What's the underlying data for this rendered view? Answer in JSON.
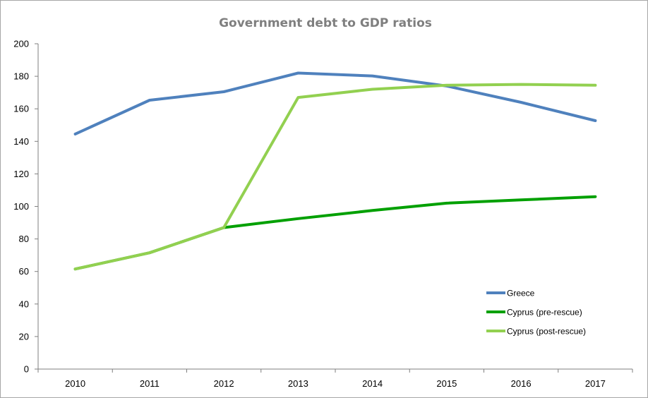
{
  "chart_data": {
    "type": "line",
    "title": "Government debt to GDP ratios",
    "xlabel": "",
    "ylabel": "",
    "categories": [
      "2010",
      "2011",
      "2012",
      "2013",
      "2014",
      "2015",
      "2016",
      "2017"
    ],
    "ylim": [
      0,
      200
    ],
    "yticks": [
      0,
      20,
      40,
      60,
      80,
      100,
      120,
      140,
      160,
      180,
      200
    ],
    "grid": false,
    "legend_position": "bottom-right",
    "series": [
      {
        "name": "Greece",
        "color": "#4f81bd",
        "values": [
          144.5,
          165.3,
          170.5,
          182,
          180.2,
          174,
          164,
          152.7
        ]
      },
      {
        "name": "Cyprus (pre-rescue)",
        "color": "#00a000",
        "values": [
          61.5,
          71.5,
          87,
          92.5,
          97.5,
          102,
          104,
          106
        ]
      },
      {
        "name": "Cyprus (post-rescue)",
        "color": "#92d050",
        "values": [
          61.5,
          71.5,
          87,
          167,
          172,
          174.5,
          175,
          174.5
        ]
      }
    ]
  }
}
